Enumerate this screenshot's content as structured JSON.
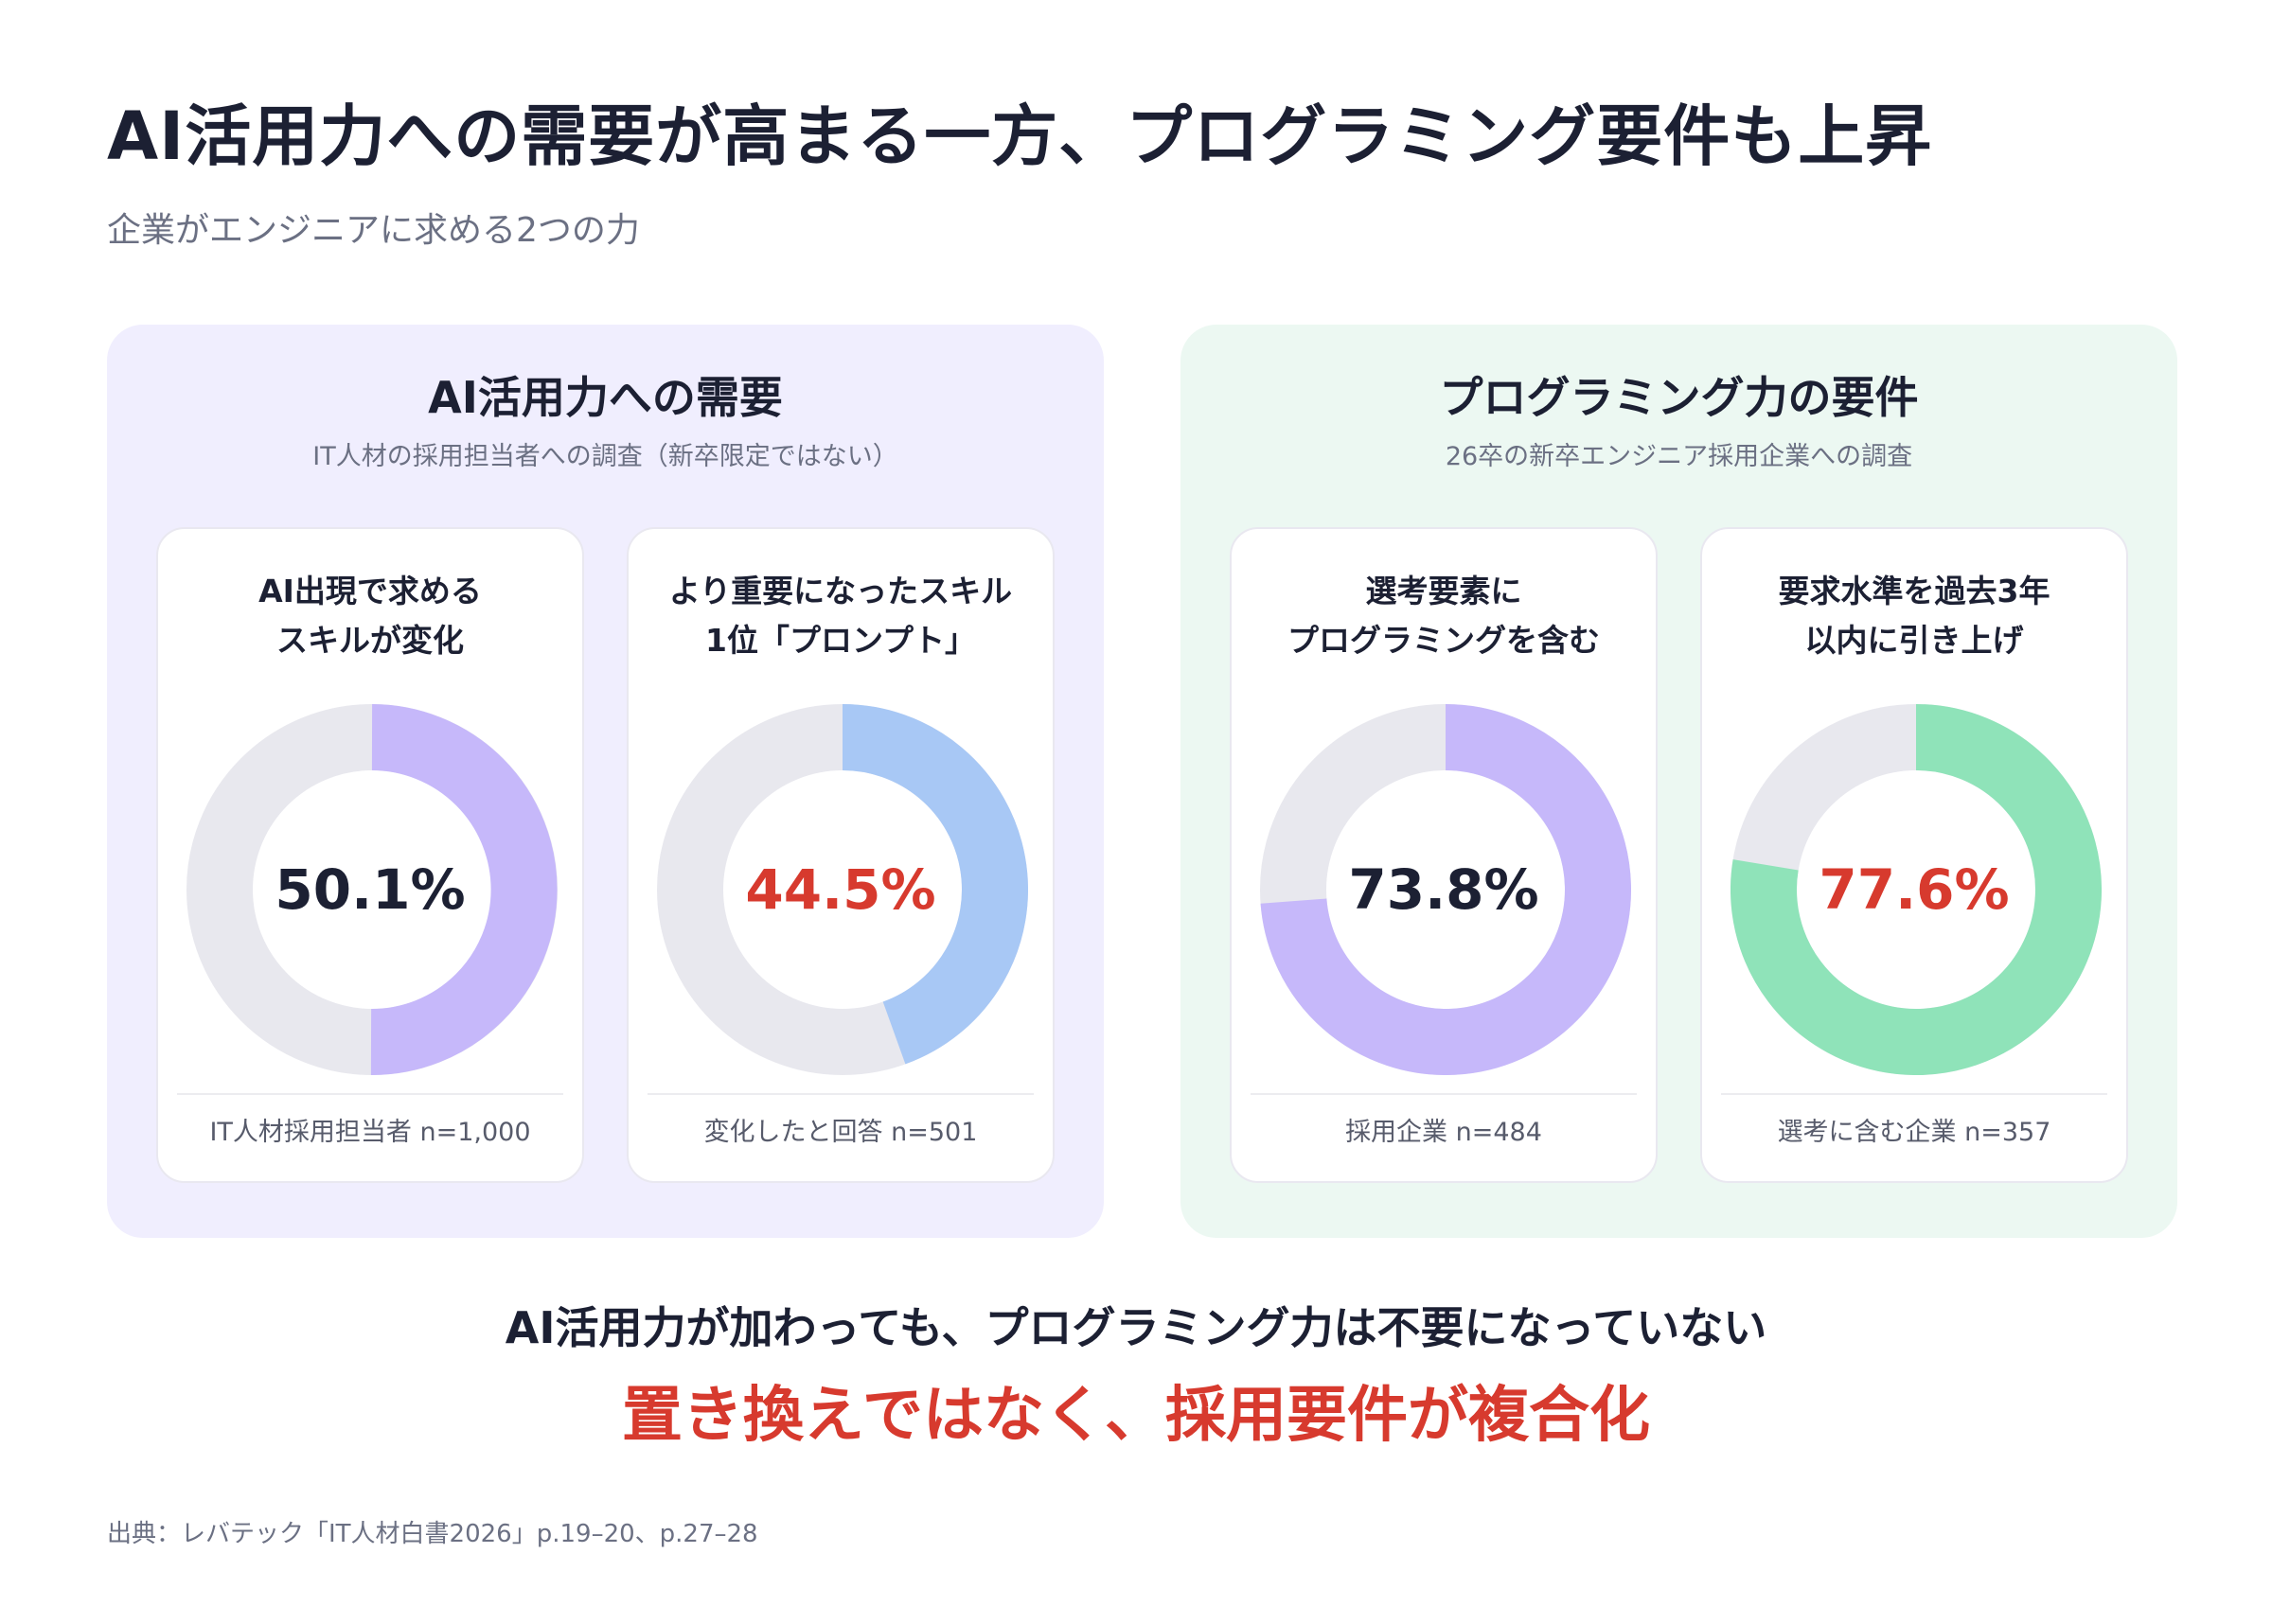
{
  "header": {
    "title": "AI活用力への需要が高まる一方、プログラミング要件も上昇",
    "subtitle": "企業がエンジニアに求める2つの力"
  },
  "panels": [
    {
      "title": "AI活用力への需要",
      "subtitle": "IT人材の採用担当者への調査（新卒限定ではない）",
      "background": "#f0eefe"
    },
    {
      "title": "プログラミング力の要件",
      "subtitle": "26卒の新卒エンジニア採用企業への調査",
      "background": "#ecf8f2"
    }
  ],
  "chart_data": [
    {
      "type": "pie",
      "title_lines": [
        "AI出現で求める",
        "スキルが変化"
      ],
      "value": 50.1,
      "label": "50.1%",
      "note": "IT人材採用担当者 n=1,000",
      "color": "#c6b8fa",
      "track_color": "#e8e8ee",
      "label_color": "#1c2033"
    },
    {
      "type": "pie",
      "title_lines": [
        "より重要になったスキル",
        "1位「プロンプト」"
      ],
      "value": 44.5,
      "label": "44.5%",
      "note": "変化したと回答 n=501",
      "color": "#a8c8f5",
      "track_color": "#e8e8ee",
      "label_color": "#d73a2e"
    },
    {
      "type": "pie",
      "title_lines": [
        "選考要素に",
        "プログラミングを含む"
      ],
      "value": 73.8,
      "label": "73.8%",
      "note": "採用企業 n=484",
      "color": "#c6b8fa",
      "track_color": "#e8e8ee",
      "label_color": "#1c2033"
    },
    {
      "type": "pie",
      "title_lines": [
        "要求水準を過去3年",
        "以内に引き上げ"
      ],
      "value": 77.6,
      "label": "77.6%",
      "note": "選考に含む企業 n=357",
      "color": "#8fe3b9",
      "track_color": "#e8e8ee",
      "label_color": "#d73a2e"
    }
  ],
  "conclusion": {
    "line1": "AI活用力が加わっても、プログラミング力は不要になっていない",
    "line2": "置き換えではなく、採用要件が複合化"
  },
  "source": "出典：レバテック「IT人材白書2026」p.19–20、p.27–28",
  "colors": {
    "accent_red": "#d73a2e",
    "text_dark": "#1c2033",
    "text_muted": "#6b7083"
  }
}
